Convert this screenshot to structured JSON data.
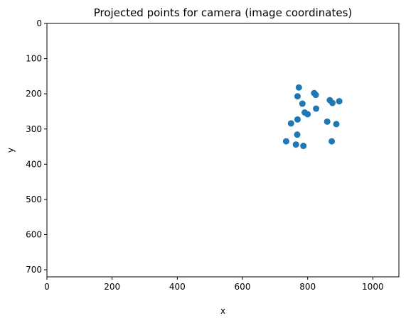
{
  "chart_data": {
    "type": "scatter",
    "title": "Projected points for camera (image coordinates)",
    "xlabel": "x",
    "ylabel": "y",
    "xlim": [
      0,
      1080
    ],
    "ylim": [
      720,
      0
    ],
    "y_inverted": true,
    "xticks": [
      0,
      200,
      400,
      600,
      800,
      1000
    ],
    "yticks": [
      0,
      100,
      200,
      300,
      400,
      500,
      600,
      700
    ],
    "grid": false,
    "legend": false,
    "marker_color": "#1f77b4",
    "series": [
      {
        "x": [
          773,
          769,
          820,
          825,
          784,
          868,
          876,
          897,
          826,
          791,
          800,
          769,
          749,
          860,
          888,
          768,
          734,
          764,
          787,
          874
        ],
        "y": [
          182,
          207,
          198,
          203,
          228,
          218,
          226,
          221,
          242,
          253,
          258,
          273,
          284,
          279,
          286,
          316,
          335,
          344,
          348,
          335
        ]
      }
    ]
  }
}
